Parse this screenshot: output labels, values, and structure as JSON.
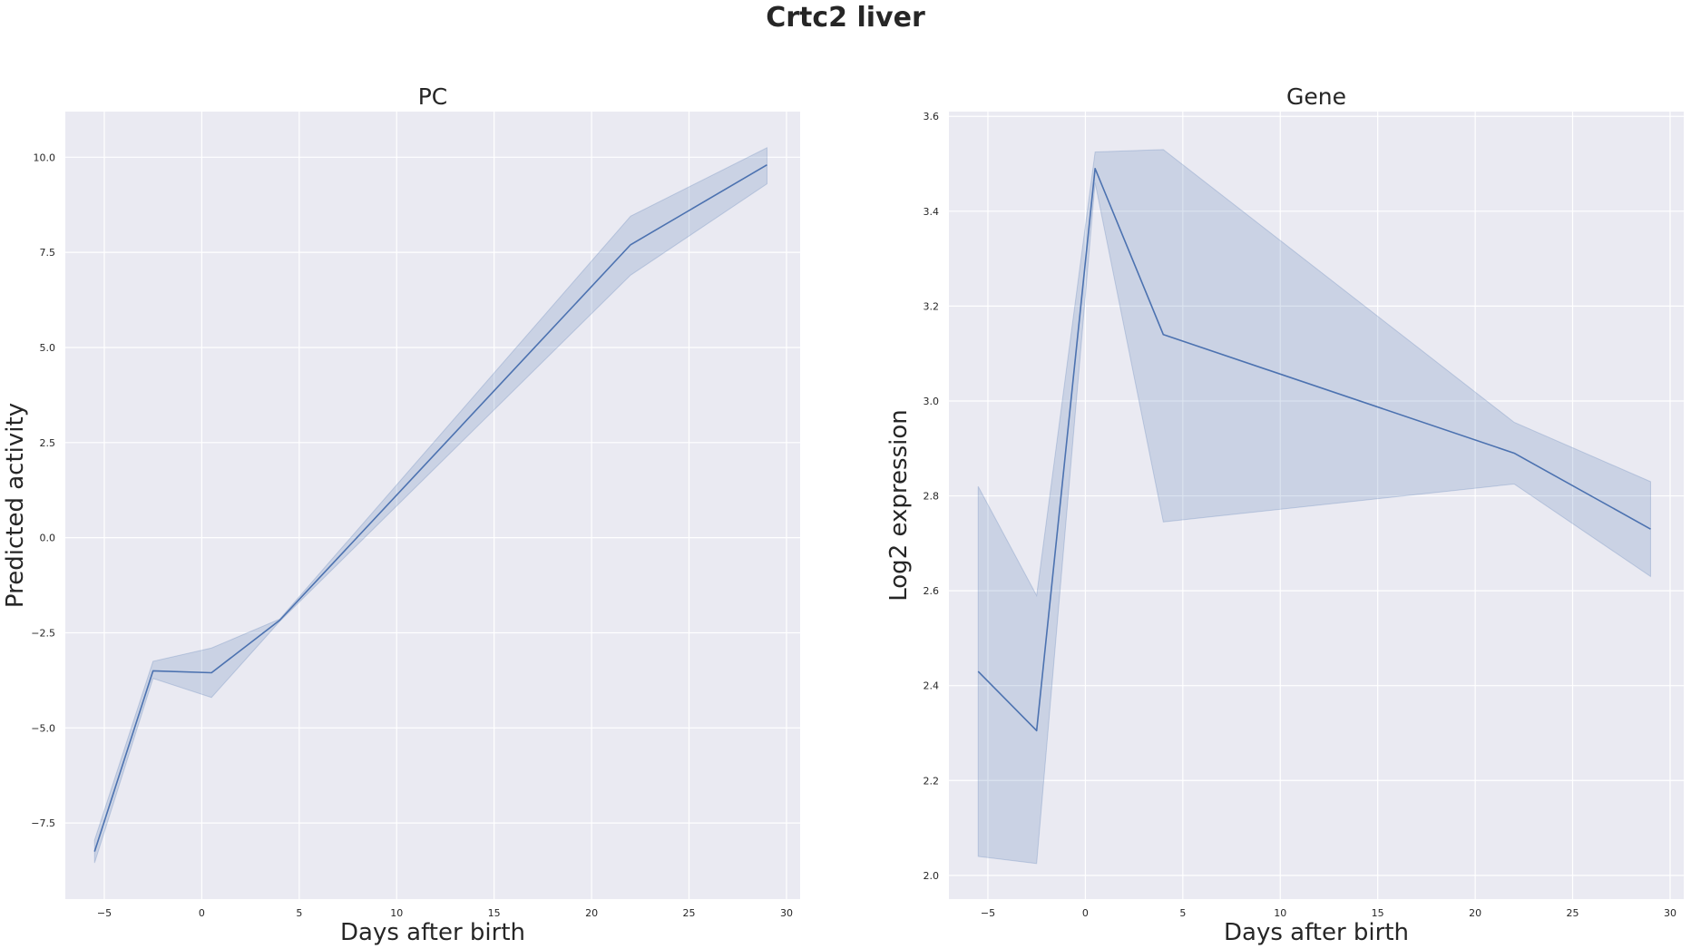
{
  "figure": {
    "title": "Crtc2 liver"
  },
  "chart_data": [
    {
      "type": "line",
      "title": "PC",
      "xlabel": "Days after birth",
      "ylabel": "Predicted activity",
      "xlim": [
        -7,
        30.7
      ],
      "ylim": [
        -9.5,
        11.2
      ],
      "xticks": [
        -5,
        0,
        5,
        10,
        15,
        20,
        25,
        30
      ],
      "xtick_labels": [
        "−5",
        "0",
        "5",
        "10",
        "15",
        "20",
        "25",
        "30"
      ],
      "yticks": [
        -7.5,
        -5.0,
        -2.5,
        0.0,
        2.5,
        5.0,
        7.5,
        10.0
      ],
      "ytick_labels": [
        "−7.5",
        "−5.0",
        "−2.5",
        "0.0",
        "2.5",
        "5.0",
        "7.5",
        "10.0"
      ],
      "grid": true,
      "line_color": "#4c72b0",
      "series": [
        {
          "x": [
            -5.5,
            -2.5,
            0.5,
            4,
            22,
            29
          ],
          "y": [
            -8.25,
            -3.5,
            -3.55,
            -2.17,
            7.7,
            9.8
          ],
          "ci_low": [
            -8.55,
            -3.7,
            -4.2,
            -2.2,
            6.9,
            9.3
          ],
          "ci_high": [
            -7.95,
            -3.25,
            -2.9,
            -2.14,
            8.45,
            10.25
          ]
        }
      ]
    },
    {
      "type": "line",
      "title": "Gene",
      "xlabel": "Days after birth",
      "ylabel": "Log2 expression",
      "xlim": [
        -7,
        30.7
      ],
      "ylim": [
        1.95,
        3.61
      ],
      "xticks": [
        -5,
        0,
        5,
        10,
        15,
        20,
        25,
        30
      ],
      "xtick_labels": [
        "−5",
        "0",
        "5",
        "10",
        "15",
        "20",
        "25",
        "30"
      ],
      "yticks": [
        2.0,
        2.2,
        2.4,
        2.6,
        2.8,
        3.0,
        3.2,
        3.4,
        3.6
      ],
      "ytick_labels": [
        "2.0",
        "2.2",
        "2.4",
        "2.6",
        "2.8",
        "3.0",
        "3.2",
        "3.4",
        "3.6"
      ],
      "grid": true,
      "line_color": "#4c72b0",
      "series": [
        {
          "x": [
            -5.5,
            -2.5,
            0.5,
            4,
            22,
            29
          ],
          "y": [
            2.43,
            2.305,
            3.49,
            3.14,
            2.89,
            2.73
          ],
          "ci_low": [
            2.04,
            2.025,
            3.46,
            2.745,
            2.825,
            2.63
          ],
          "ci_high": [
            2.82,
            2.59,
            3.525,
            3.53,
            2.955,
            2.83
          ]
        }
      ]
    }
  ]
}
